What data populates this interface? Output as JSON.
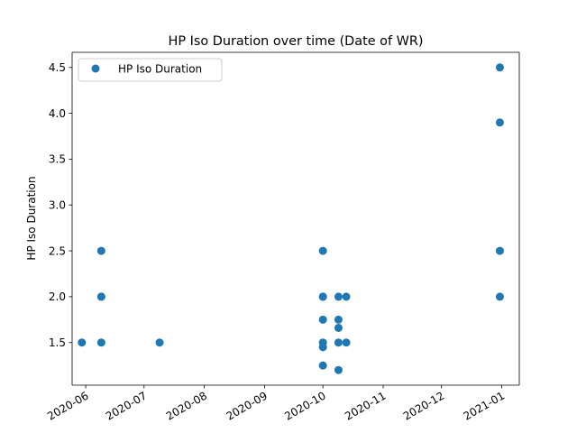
{
  "chart_data": {
    "type": "scatter",
    "title": "HP Iso Duration over time (Date of WR)",
    "xlabel": "",
    "ylabel": "HP Iso Duration",
    "x_type": "date",
    "xlim": [
      "2020-05-25",
      "2021-01-10"
    ],
    "ylim": [
      1.035,
      4.665
    ],
    "x_ticks": [
      "2020-06",
      "2020-07",
      "2020-08",
      "2020-09",
      "2020-10",
      "2020-11",
      "2020-12",
      "2021-01"
    ],
    "y_ticks": [
      "1.5",
      "2.0",
      "2.5",
      "3.0",
      "3.5",
      "4.0",
      "4.5"
    ],
    "grid": false,
    "legend": {
      "position": "top-left",
      "entries": [
        "HP Iso Duration"
      ]
    },
    "color": "#1f77b4",
    "series": [
      {
        "name": "HP Iso Duration",
        "points": [
          {
            "x": "2020-05-30",
            "y": 1.5
          },
          {
            "x": "2020-06-09",
            "y": 2.5
          },
          {
            "x": "2020-06-09",
            "y": 2.0
          },
          {
            "x": "2020-06-09",
            "y": 2.0
          },
          {
            "x": "2020-06-09",
            "y": 1.5
          },
          {
            "x": "2020-07-09",
            "y": 1.5
          },
          {
            "x": "2020-10-01",
            "y": 2.5
          },
          {
            "x": "2020-10-01",
            "y": 2.0
          },
          {
            "x": "2020-10-01",
            "y": 2.0
          },
          {
            "x": "2020-10-01",
            "y": 1.75
          },
          {
            "x": "2020-10-01",
            "y": 1.5
          },
          {
            "x": "2020-10-01",
            "y": 1.45
          },
          {
            "x": "2020-10-01",
            "y": 1.25
          },
          {
            "x": "2020-10-09",
            "y": 2.0
          },
          {
            "x": "2020-10-09",
            "y": 1.75
          },
          {
            "x": "2020-10-09",
            "y": 1.66
          },
          {
            "x": "2020-10-09",
            "y": 1.5
          },
          {
            "x": "2020-10-09",
            "y": 1.2
          },
          {
            "x": "2020-10-13",
            "y": 2.0
          },
          {
            "x": "2020-10-13",
            "y": 1.5
          },
          {
            "x": "2020-12-31",
            "y": 4.5
          },
          {
            "x": "2020-12-31",
            "y": 3.9
          },
          {
            "x": "2020-12-31",
            "y": 2.5
          },
          {
            "x": "2020-12-31",
            "y": 2.0
          }
        ]
      }
    ]
  }
}
